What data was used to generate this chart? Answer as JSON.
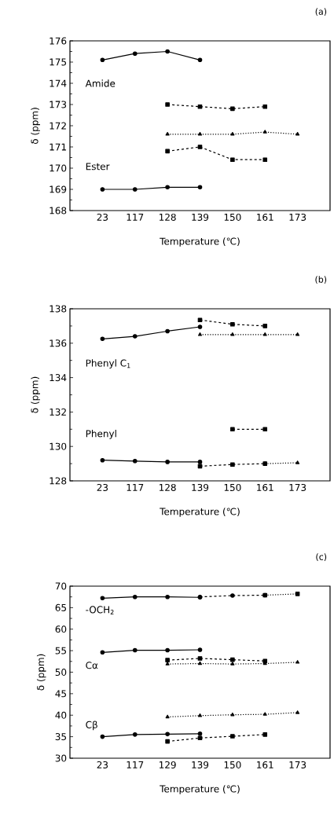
{
  "chart_data": [
    {
      "type": "line",
      "title": "(a)",
      "xlabel": "Temperature (℃)",
      "ylabel": "δ (ppm)",
      "categories": [
        "23",
        "117",
        "128",
        "139",
        "150",
        "161",
        "173"
      ],
      "ylim": [
        168,
        176
      ],
      "yticks": [
        168,
        169,
        170,
        171,
        172,
        173,
        174,
        175,
        176
      ],
      "grid": false,
      "legend": false,
      "series": [
        {
          "color": "#000000",
          "marker": "circle",
          "line_style": "solid",
          "values": [
            175.1,
            175.4,
            175.5,
            175.1,
            null,
            null,
            null
          ]
        },
        {
          "color": "#000000",
          "marker": "square",
          "line_style": "dashed",
          "values": [
            null,
            null,
            173.0,
            172.9,
            172.8,
            172.9,
            null
          ]
        },
        {
          "color": "#000000",
          "marker": "triangle",
          "line_style": "dotted",
          "values": [
            null,
            null,
            171.6,
            171.6,
            171.6,
            171.7,
            171.6
          ]
        },
        {
          "color": "#000000",
          "marker": "square",
          "line_style": "dashed",
          "values": [
            null,
            null,
            170.8,
            171.0,
            170.4,
            170.4,
            null
          ]
        },
        {
          "color": "#000000",
          "marker": "circle",
          "line_style": "solid",
          "values": [
            169.0,
            169.0,
            169.1,
            169.1,
            null,
            null,
            null
          ]
        }
      ],
      "annotations": [
        "Amide",
        "Ester"
      ]
    },
    {
      "type": "line",
      "title": "(b)",
      "xlabel": "Temperature (℃)",
      "ylabel": "δ (ppm)",
      "categories": [
        "23",
        "117",
        "128",
        "139",
        "150",
        "161",
        "173"
      ],
      "ylim": [
        128,
        138
      ],
      "yticks": [
        128,
        130,
        132,
        134,
        136,
        138
      ],
      "grid": false,
      "legend": false,
      "series": [
        {
          "color": "#000000",
          "marker": "circle",
          "line_style": "solid",
          "values": [
            136.25,
            136.4,
            136.7,
            136.95,
            null,
            null,
            null
          ]
        },
        {
          "color": "#000000",
          "marker": "square",
          "line_style": "dashed",
          "values": [
            null,
            null,
            null,
            137.35,
            137.1,
            137.0,
            null
          ]
        },
        {
          "color": "#000000",
          "marker": "triangle",
          "line_style": "dotted",
          "values": [
            null,
            null,
            null,
            136.5,
            136.5,
            136.5,
            136.5
          ]
        },
        {
          "color": "#000000",
          "marker": "square",
          "line_style": "dashed",
          "values": [
            null,
            null,
            null,
            null,
            131.0,
            131.0,
            null
          ]
        },
        {
          "color": "#000000",
          "marker": "circle",
          "line_style": "solid",
          "values": [
            129.2,
            129.15,
            129.1,
            129.1,
            null,
            null,
            null
          ]
        },
        {
          "color": "#000000",
          "marker": "square",
          "line_style": "dashed",
          "values": [
            null,
            null,
            null,
            128.85,
            128.95,
            129.0,
            null
          ]
        },
        {
          "color": "#000000",
          "marker": "triangle",
          "line_style": "dotted",
          "values": [
            null,
            null,
            null,
            null,
            null,
            129.0,
            129.05
          ]
        }
      ],
      "annotations": [
        "Phenyl C$_{1}$",
        "Phenyl"
      ]
    },
    {
      "type": "line",
      "title": "(c)",
      "xlabel": "Temperature (℃)",
      "ylabel": "δ (ppm)",
      "categories": [
        "23",
        "117",
        "129",
        "139",
        "150",
        "161",
        "173"
      ],
      "ylim": [
        30,
        70
      ],
      "yticks": [
        30,
        35,
        40,
        45,
        50,
        55,
        60,
        65,
        70
      ],
      "grid": false,
      "legend": false,
      "series": [
        {
          "color": "#000000",
          "marker": "circle",
          "line_style": "solid",
          "values": [
            67.2,
            67.5,
            67.5,
            67.4,
            null,
            null,
            null
          ]
        },
        {
          "color": "#000000",
          "marker": "circle",
          "line_style": "dashed",
          "values": [
            null,
            null,
            null,
            67.5,
            67.8,
            67.9,
            null
          ]
        },
        {
          "color": "#000000",
          "marker": "square",
          "line_style": "dotted",
          "values": [
            null,
            null,
            null,
            null,
            null,
            67.9,
            68.2
          ]
        },
        {
          "color": "#000000",
          "marker": "circle",
          "line_style": "solid",
          "values": [
            54.6,
            55.1,
            55.1,
            55.2,
            null,
            null,
            null
          ]
        },
        {
          "color": "#000000",
          "marker": "square",
          "line_style": "dashed",
          "values": [
            null,
            null,
            52.8,
            53.2,
            52.9,
            52.6,
            null
          ]
        },
        {
          "color": "#000000",
          "marker": "triangle",
          "line_style": "dotted",
          "values": [
            null,
            null,
            51.9,
            52.0,
            51.9,
            52.0,
            52.3
          ]
        },
        {
          "color": "#000000",
          "marker": "triangle",
          "line_style": "dotted",
          "values": [
            null,
            null,
            39.6,
            39.9,
            40.1,
            40.2,
            40.6
          ]
        },
        {
          "color": "#000000",
          "marker": "circle",
          "line_style": "solid",
          "values": [
            35.0,
            35.5,
            35.6,
            35.7,
            null,
            null,
            null
          ]
        },
        {
          "color": "#000000",
          "marker": "square",
          "line_style": "dashed",
          "values": [
            null,
            null,
            33.9,
            34.7,
            35.1,
            35.5,
            null
          ]
        }
      ],
      "annotations": [
        "-OCH$_{2}$",
        "Cα",
        "Cβ"
      ]
    }
  ]
}
